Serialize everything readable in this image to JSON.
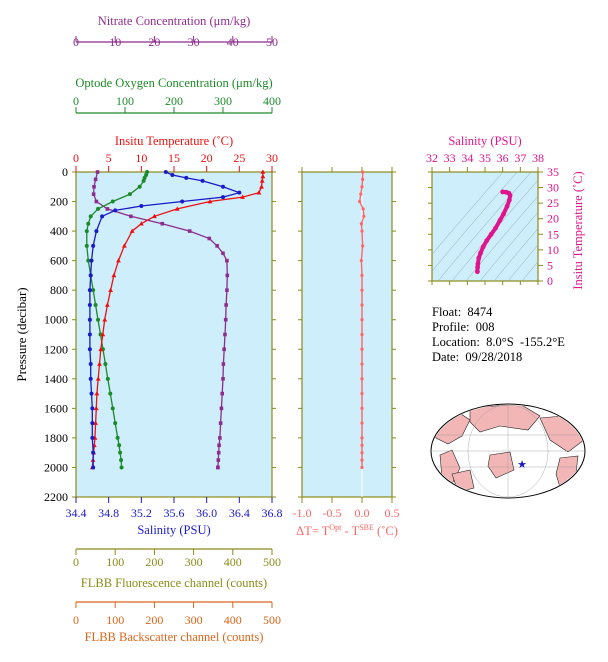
{
  "colors": {
    "nitrate": "#8e2c8e",
    "oxygen": "#1d8a2a",
    "temperature": "#ee1111",
    "salinity": "#1a1ac8",
    "fluorescence": "#8b8b1a",
    "backscatter": "#d9661a",
    "delta": "#ff6666",
    "ts": "#e0148c",
    "plot_bg": "#cdeefa",
    "axis": "#8b8b1a"
  },
  "info": {
    "float": "Float:  8474",
    "profile": "Profile:  008",
    "location": "Location:  8.0°S  -155.2°E",
    "date": "Date:  09/28/2018"
  },
  "chart_data": [
    {
      "type": "line",
      "title": "",
      "ylabel": "Pressure (decibar)",
      "ylim": [
        2200,
        0
      ],
      "y_ticks": [
        "0",
        "200",
        "400",
        "600",
        "800",
        "1000",
        "1200",
        "1400",
        "1600",
        "1800",
        "2000",
        "2200"
      ],
      "axes": {
        "nitrate": {
          "label": "Nitrate Concentration (μm/kg)",
          "xlim": [
            0,
            50
          ],
          "ticks": [
            "0",
            "10",
            "20",
            "30",
            "40",
            "50"
          ]
        },
        "oxygen": {
          "label": "Optode Oxygen Concentration (μm/kg)",
          "xlim": [
            0,
            400
          ],
          "ticks": [
            "0",
            "100",
            "200",
            "300",
            "400"
          ]
        },
        "temperature": {
          "label": "Insitu Temperature (˚C)",
          "xlim": [
            0,
            30
          ],
          "ticks": [
            "0",
            "5",
            "10",
            "15",
            "20",
            "25",
            "30"
          ]
        },
        "salinity": {
          "label": "Salinity (PSU)",
          "xlim": [
            34.4,
            36.8
          ],
          "ticks": [
            "34.4",
            "34.8",
            "35.2",
            "35.6",
            "36.0",
            "36.4",
            "36.8"
          ]
        },
        "fluorescence": {
          "label": "FLBB Fluorescence channel (counts)",
          "xlim": [
            0,
            500
          ],
          "ticks": [
            "0",
            "100",
            "200",
            "300",
            "400",
            "500"
          ]
        },
        "backscatter": {
          "label": "FLBB Backscatter channel (counts)",
          "xlim": [
            0,
            500
          ],
          "ticks": [
            "0",
            "100",
            "200",
            "300",
            "400",
            "500"
          ]
        }
      },
      "series": [
        {
          "name": "Nitrate",
          "axis": "nitrate",
          "x": [
            5.5,
            5,
            4.6,
            4.5,
            5.2,
            8,
            14,
            22,
            29,
            34,
            36,
            37.5,
            38.5,
            38.6,
            38.5,
            38.3,
            38.2,
            38,
            37.8,
            37.6,
            37.5,
            37.3,
            37.1,
            36.9,
            36.7,
            36.5,
            36.4,
            36.3,
            36.2,
            36.2
          ],
          "y": [
            0,
            50,
            100,
            150,
            200,
            250,
            300,
            350,
            400,
            450,
            500,
            550,
            600,
            700,
            800,
            900,
            1000,
            1100,
            1200,
            1300,
            1400,
            1500,
            1600,
            1700,
            1800,
            1850,
            1900,
            1950,
            2000,
            2000
          ]
        },
        {
          "name": "Oxygen",
          "axis": "oxygen",
          "x": [
            145,
            143,
            140,
            138,
            130,
            110,
            75,
            45,
            30,
            25,
            22,
            22,
            25,
            30,
            35,
            40,
            45,
            50,
            55,
            60,
            65,
            70,
            75,
            80,
            85,
            88,
            90,
            92,
            93
          ],
          "y": [
            0,
            20,
            40,
            60,
            100,
            150,
            200,
            250,
            300,
            350,
            400,
            500,
            600,
            700,
            800,
            900,
            1000,
            1100,
            1200,
            1300,
            1400,
            1500,
            1600,
            1700,
            1800,
            1850,
            1900,
            1950,
            2000
          ]
        },
        {
          "name": "Temperature",
          "axis": "temperature",
          "x": [
            28.6,
            28.6,
            28.5,
            28.4,
            28.0,
            25.5,
            20.5,
            15.5,
            12.0,
            10.0,
            8.6,
            7.4,
            6.5,
            5.8,
            5.3,
            4.8,
            4.4,
            4.1,
            3.8,
            3.6,
            3.4,
            3.2,
            3.1,
            3.0,
            2.9,
            2.8,
            2.7,
            2.6,
            2.5
          ],
          "y": [
            0,
            30,
            60,
            100,
            140,
            170,
            200,
            250,
            300,
            350,
            400,
            500,
            600,
            700,
            800,
            900,
            1000,
            1100,
            1200,
            1300,
            1400,
            1500,
            1600,
            1700,
            1800,
            1850,
            1900,
            1950,
            2000
          ]
        },
        {
          "name": "Salinity",
          "axis": "salinity",
          "x": [
            35.5,
            35.58,
            35.75,
            35.95,
            36.2,
            36.4,
            36.2,
            35.7,
            35.2,
            34.88,
            34.72,
            34.65,
            34.61,
            34.59,
            34.58,
            34.57,
            34.57,
            34.57,
            34.57,
            34.57,
            34.58,
            34.58,
            34.59,
            34.6,
            34.6,
            34.6,
            34.61,
            34.61
          ],
          "y": [
            0,
            20,
            40,
            60,
            100,
            140,
            170,
            200,
            230,
            260,
            300,
            400,
            500,
            600,
            700,
            800,
            900,
            1000,
            1100,
            1200,
            1300,
            1400,
            1500,
            1600,
            1700,
            1800,
            1900,
            2000
          ]
        }
      ]
    },
    {
      "type": "line",
      "xlabel": "ΔT= T^Opt - T^SBE (˚C)",
      "xlim": [
        -1.0,
        0.5
      ],
      "x_ticks": [
        "-1.0",
        "-0.5",
        "0.0",
        "0.5"
      ],
      "ylim": [
        2200,
        0
      ],
      "series": [
        {
          "name": "ΔT",
          "x": [
            0.01,
            0.01,
            0.0,
            -0.02,
            -0.04,
            0.02,
            0.03,
            -0.01,
            0.0,
            0.01,
            -0.01,
            0.0,
            0.0,
            0.0,
            0.0,
            0.0,
            0.0,
            0.0,
            0.0,
            0.0,
            0.0,
            0.0,
            0.0,
            0.0,
            0.0,
            0.0,
            0.0
          ],
          "y": [
            0,
            50,
            100,
            150,
            200,
            250,
            300,
            350,
            400,
            500,
            600,
            700,
            800,
            900,
            1000,
            1100,
            1200,
            1300,
            1400,
            1500,
            1600,
            1700,
            1800,
            1850,
            1900,
            1950,
            2000
          ]
        }
      ]
    },
    {
      "type": "scatter",
      "xlabel": "Salinity (PSU)",
      "ylabel": "Insitu Temperature (˚C)",
      "xlim": [
        32,
        38
      ],
      "ylim": [
        0,
        35
      ],
      "x_ticks": [
        "32",
        "33",
        "34",
        "35",
        "36",
        "37",
        "38"
      ],
      "y_ticks": [
        "0",
        "5",
        "10",
        "15",
        "20",
        "25",
        "30",
        "35"
      ],
      "series": [
        {
          "name": "T-S",
          "x": [
            34.57,
            34.58,
            34.6,
            34.65,
            34.75,
            34.9,
            35.1,
            35.35,
            35.6,
            35.85,
            36.05,
            36.25,
            36.38,
            36.42,
            36.35,
            36.2,
            36.0
          ],
          "y": [
            3,
            4.4,
            5.5,
            7.4,
            9,
            11,
            13,
            15,
            17,
            19.5,
            21.5,
            24,
            26,
            27.5,
            28.2,
            28.5,
            28.6
          ]
        }
      ]
    }
  ]
}
